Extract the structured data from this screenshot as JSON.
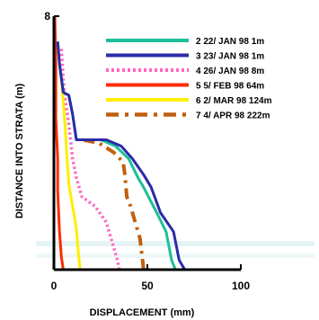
{
  "chart_data": {
    "type": "line",
    "xlabel": "DISPLACEMENT (mm)",
    "ylabel": "DISTANCE INTO STRATA (m)",
    "xlim": [
      0,
      100
    ],
    "ylim": [
      0,
      8
    ],
    "x_ticks": [
      "0",
      "50",
      "100"
    ],
    "y_ticks": [
      "8"
    ],
    "grid": false,
    "legend_position": "top-right",
    "series": [
      {
        "name": "2 22/ JAN 98 1m",
        "color": "#1dbf9a",
        "style": "solid",
        "points": [
          [
            65,
            0
          ],
          [
            63,
            0.3
          ],
          [
            60,
            1.2
          ],
          [
            55,
            1.8
          ],
          [
            48,
            2.6
          ],
          [
            45,
            2.9
          ],
          [
            40,
            3.5
          ],
          [
            33,
            3.9
          ],
          [
            25,
            4.1
          ],
          [
            12,
            4.1
          ],
          [
            10,
            4.9
          ],
          [
            8,
            5.5
          ],
          [
            5,
            5.6
          ],
          [
            3,
            6.5
          ],
          [
            2,
            7.2
          ]
        ]
      },
      {
        "name": "3 23/ JAN 98 1m",
        "color": "#2b2ba8",
        "style": "solid",
        "points": [
          [
            70,
            0
          ],
          [
            67,
            0.3
          ],
          [
            64,
            1.2
          ],
          [
            57,
            1.8
          ],
          [
            52,
            2.6
          ],
          [
            48,
            3.0
          ],
          [
            42,
            3.5
          ],
          [
            36,
            3.9
          ],
          [
            28,
            4.1
          ],
          [
            12,
            4.1
          ],
          [
            10,
            4.9
          ],
          [
            8,
            5.5
          ],
          [
            5,
            5.6
          ],
          [
            3,
            6.5
          ],
          [
            2,
            7.2
          ]
        ]
      },
      {
        "name": "4 26/ JAN 98 8m",
        "color": "#ff66c4",
        "style": "dotted",
        "points": [
          [
            35,
            0
          ],
          [
            34,
            0.3
          ],
          [
            31,
            0.9
          ],
          [
            28,
            1.5
          ],
          [
            22,
            2.0
          ],
          [
            15,
            2.3
          ],
          [
            12,
            2.9
          ],
          [
            10,
            3.5
          ],
          [
            8,
            4.6
          ],
          [
            6,
            5.4
          ],
          [
            5,
            6.0
          ],
          [
            4,
            7.0
          ]
        ]
      },
      {
        "name": "5 5/ FEB 98 64m",
        "color": "#ff2a00",
        "style": "solid",
        "points": [
          [
            5,
            0
          ],
          [
            4,
            0.4
          ],
          [
            3,
            1.2
          ],
          [
            2,
            2.5
          ],
          [
            2,
            3.5
          ],
          [
            1,
            4.8
          ],
          [
            1,
            5.5
          ],
          [
            1,
            6.5
          ],
          [
            0.5,
            8
          ]
        ]
      },
      {
        "name": "6 2/ MAR 98 124m",
        "color": "#ffee00",
        "style": "solid",
        "points": [
          [
            14,
            0
          ],
          [
            13,
            0.6
          ],
          [
            12,
            1.3
          ],
          [
            10,
            2.0
          ],
          [
            8,
            2.7
          ],
          [
            7,
            3.5
          ],
          [
            6,
            4.5
          ],
          [
            5,
            5.3
          ],
          [
            4,
            6.0
          ],
          [
            2,
            7.0
          ]
        ]
      },
      {
        "name": "7 4/ APR 98 222m",
        "color": "#c06010",
        "style": "dashdot",
        "points": [
          [
            48,
            0
          ],
          [
            47,
            0.5
          ],
          [
            46,
            1.0
          ],
          [
            44,
            1.4
          ],
          [
            41,
            2.0
          ],
          [
            39,
            2.3
          ],
          [
            38,
            3.0
          ],
          [
            37,
            3.4
          ],
          [
            32,
            3.7
          ],
          [
            24,
            4.0
          ],
          [
            15,
            4.1
          ]
        ]
      }
    ]
  }
}
